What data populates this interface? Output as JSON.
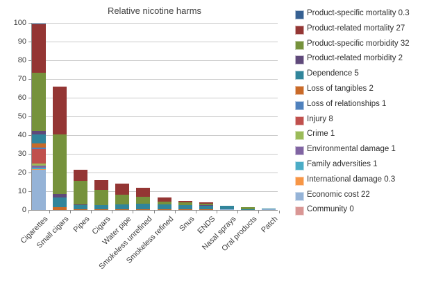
{
  "chart_data": {
    "type": "bar",
    "stacked": true,
    "title": "Relative nicotine harms",
    "xlabel": "",
    "ylabel": "",
    "ylim": [
      0,
      100
    ],
    "ytick_step": 10,
    "grid": true,
    "legend_position": "right",
    "categories": [
      "Cigarettes",
      "Small cigars",
      "Pipes",
      "Cigars",
      "Water pipe",
      "Smokeless unrefined",
      "Smokeless refined",
      "Snus",
      "ENDS",
      "Nasal sprays",
      "Oral products",
      "Patch"
    ],
    "totals": [
      99.8,
      66.1,
      21.5,
      16.0,
      14.0,
      11.9,
      6.7,
      5.0,
      4.2,
      2.4,
      1.3,
      0.9
    ],
    "series": [
      {
        "name": "Product-specific mortality",
        "legend_value": "0.3",
        "label": "Product-specific mortality 0.3",
        "color": "#366092",
        "values": [
          0.3,
          0,
          0,
          0,
          0,
          0,
          0,
          0,
          0,
          0,
          0,
          0
        ]
      },
      {
        "name": "Product-related mortality",
        "legend_value": "27",
        "label": "Product-related mortality 27",
        "color": "#943634",
        "values": [
          26.2,
          25.7,
          6.0,
          5.1,
          5.9,
          4.7,
          2.1,
          1.0,
          0.8,
          0,
          0,
          0
        ]
      },
      {
        "name": "Product-specific morbidity",
        "legend_value": "32",
        "label": "Product-specific morbidity 32",
        "color": "#76923C",
        "values": [
          31.1,
          32.0,
          12.6,
          8.3,
          5.2,
          4.0,
          1.7,
          1.5,
          0.7,
          0,
          0.8,
          0
        ]
      },
      {
        "name": "Product-related morbidity",
        "legend_value": "2",
        "label": "Product-related morbidity 2",
        "color": "#5F497A",
        "values": [
          1.9,
          1.7,
          0.3,
          0,
          0,
          0,
          0,
          0,
          0.5,
          0,
          0,
          0
        ]
      },
      {
        "name": "Dependence",
        "legend_value": "5",
        "label": "Dependence 5",
        "color": "#31859B",
        "values": [
          4.9,
          5.2,
          2.3,
          2.3,
          2.6,
          2.8,
          2.6,
          2.2,
          2.0,
          2.0,
          0.5,
          0.5
        ]
      },
      {
        "name": "Loss of tangibles",
        "legend_value": "2",
        "label": "Loss of tangibles 2",
        "color": "#C96A28",
        "values": [
          1.9,
          1.5,
          0.3,
          0.3,
          0.3,
          0.4,
          0.3,
          0.3,
          0.2,
          0,
          0,
          0
        ]
      },
      {
        "name": "Loss of relationships",
        "legend_value": "1",
        "label": "Loss of relationships 1",
        "color": "#4F81BD",
        "values": [
          1.0,
          0,
          0,
          0,
          0,
          0,
          0,
          0,
          0,
          0,
          0,
          0
        ]
      },
      {
        "name": "Injury",
        "legend_value": "8",
        "label": "Injury 8",
        "color": "#C0504D",
        "values": [
          7.8,
          0,
          0,
          0,
          0,
          0,
          0,
          0,
          0,
          0,
          0,
          0
        ]
      },
      {
        "name": "Crime",
        "legend_value": "1",
        "label": "Crime 1",
        "color": "#9BBB59",
        "values": [
          1.0,
          0,
          0,
          0,
          0,
          0,
          0,
          0,
          0,
          0,
          0,
          0
        ]
      },
      {
        "name": "Environmental damage",
        "legend_value": "1",
        "label": "Environmental damage 1",
        "color": "#8064A2",
        "values": [
          1.0,
          0,
          0,
          0,
          0,
          0,
          0,
          0,
          0,
          0,
          0,
          0
        ]
      },
      {
        "name": "Family adversities",
        "legend_value": "1",
        "label": "Family adversities 1",
        "color": "#4BACC6",
        "values": [
          1.0,
          0,
          0,
          0,
          0,
          0,
          0,
          0,
          0,
          0,
          0,
          0
        ]
      },
      {
        "name": "International damage",
        "legend_value": "0.3",
        "label": "International damage 0.3",
        "color": "#F79646",
        "values": [
          0.3,
          0,
          0,
          0,
          0,
          0,
          0,
          0,
          0,
          0,
          0,
          0
        ]
      },
      {
        "name": "Economic cost",
        "legend_value": "22",
        "label": "Economic cost 22",
        "color": "#95B3D7",
        "values": [
          21.4,
          0,
          0,
          0,
          0,
          0,
          0,
          0,
          0,
          0.4,
          0,
          0.4
        ]
      },
      {
        "name": "Community",
        "legend_value": "0",
        "label": "Community 0",
        "color": "#D99694",
        "values": [
          0,
          0,
          0,
          0,
          0,
          0,
          0,
          0,
          0,
          0,
          0,
          0
        ]
      }
    ]
  }
}
